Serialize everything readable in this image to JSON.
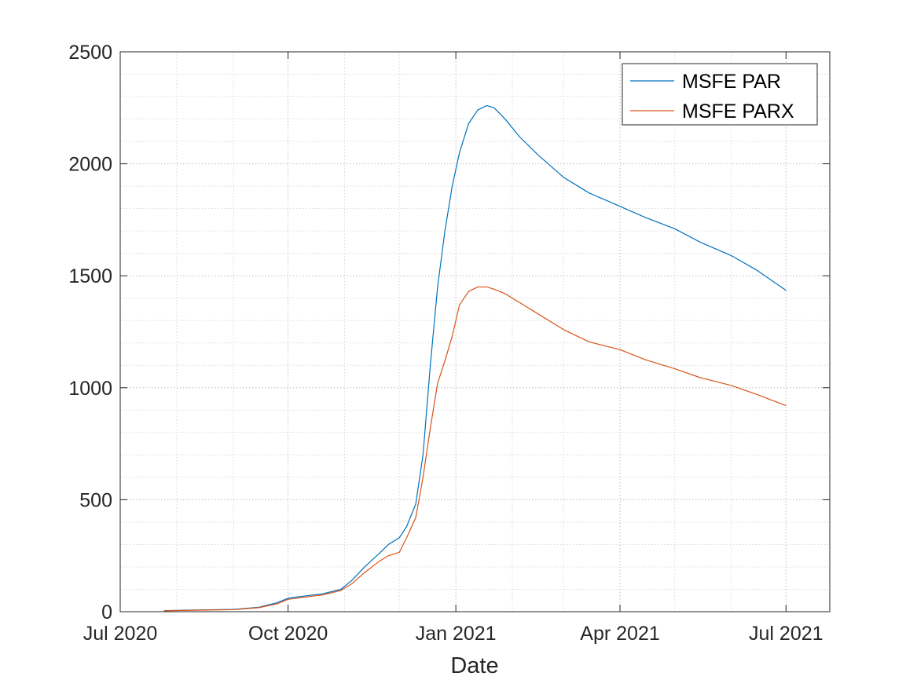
{
  "chart_data": {
    "type": "line",
    "title": "",
    "xlabel": "Date",
    "ylabel": "",
    "xlim": [
      "2020-07-01",
      "2021-07-25"
    ],
    "ylim": [
      0,
      2500
    ],
    "x_ticks": [
      "2020-07-01",
      "2020-10-01",
      "2021-01-01",
      "2021-04-01",
      "2021-07-01"
    ],
    "x_tick_labels": [
      "Jul 2020",
      "Oct 2020",
      "Jan 2021",
      "Apr 2021",
      "Jul 2021"
    ],
    "y_ticks": [
      0,
      500,
      1000,
      1500,
      2000,
      2500
    ],
    "y_tick_labels": [
      "0",
      "500",
      "1000",
      "1500",
      "2000",
      "2500"
    ],
    "grid": true,
    "minor_grid": true,
    "legend_position": "top-right",
    "series": [
      {
        "name": "MSFE PAR",
        "color": "#0072BD",
        "x": [
          "2020-07-25",
          "2020-08-01",
          "2020-08-15",
          "2020-09-01",
          "2020-09-15",
          "2020-09-25",
          "2020-10-01",
          "2020-10-10",
          "2020-10-20",
          "2020-10-30",
          "2020-11-05",
          "2020-11-12",
          "2020-11-20",
          "2020-11-25",
          "2020-12-01",
          "2020-12-05",
          "2020-12-10",
          "2020-12-14",
          "2020-12-18",
          "2020-12-22",
          "2020-12-26",
          "2020-12-30",
          "2021-01-03",
          "2021-01-08",
          "2021-01-13",
          "2021-01-18",
          "2021-01-22",
          "2021-01-28",
          "2021-02-05",
          "2021-02-15",
          "2021-03-01",
          "2021-03-15",
          "2021-04-01",
          "2021-04-15",
          "2021-05-01",
          "2021-05-15",
          "2021-06-01",
          "2021-06-15",
          "2021-07-01"
        ],
        "values": [
          5,
          6,
          8,
          10,
          20,
          40,
          60,
          70,
          80,
          100,
          140,
          200,
          260,
          300,
          330,
          380,
          480,
          700,
          1100,
          1450,
          1700,
          1900,
          2050,
          2180,
          2240,
          2260,
          2250,
          2200,
          2120,
          2040,
          1940,
          1870,
          1810,
          1760,
          1710,
          1650,
          1590,
          1525,
          1435
        ]
      },
      {
        "name": "MSFE PARX",
        "color": "#D95319",
        "x": [
          "2020-07-25",
          "2020-08-01",
          "2020-08-15",
          "2020-09-01",
          "2020-09-15",
          "2020-09-25",
          "2020-10-01",
          "2020-10-10",
          "2020-10-20",
          "2020-10-30",
          "2020-11-05",
          "2020-11-12",
          "2020-11-20",
          "2020-11-25",
          "2020-12-01",
          "2020-12-05",
          "2020-12-10",
          "2020-12-14",
          "2020-12-18",
          "2020-12-22",
          "2020-12-26",
          "2020-12-30",
          "2021-01-03",
          "2021-01-08",
          "2021-01-13",
          "2021-01-18",
          "2021-01-22",
          "2021-01-28",
          "2021-02-05",
          "2021-02-15",
          "2021-03-01",
          "2021-03-15",
          "2021-04-01",
          "2021-04-15",
          "2021-05-01",
          "2021-05-15",
          "2021-06-01",
          "2021-06-15",
          "2021-07-01"
        ],
        "values": [
          4,
          5,
          7,
          9,
          18,
          35,
          55,
          65,
          75,
          95,
          125,
          175,
          225,
          250,
          265,
          330,
          420,
          600,
          820,
          1020,
          1120,
          1230,
          1370,
          1430,
          1450,
          1450,
          1440,
          1420,
          1380,
          1330,
          1260,
          1205,
          1170,
          1125,
          1085,
          1045,
          1010,
          970,
          920
        ]
      }
    ]
  }
}
